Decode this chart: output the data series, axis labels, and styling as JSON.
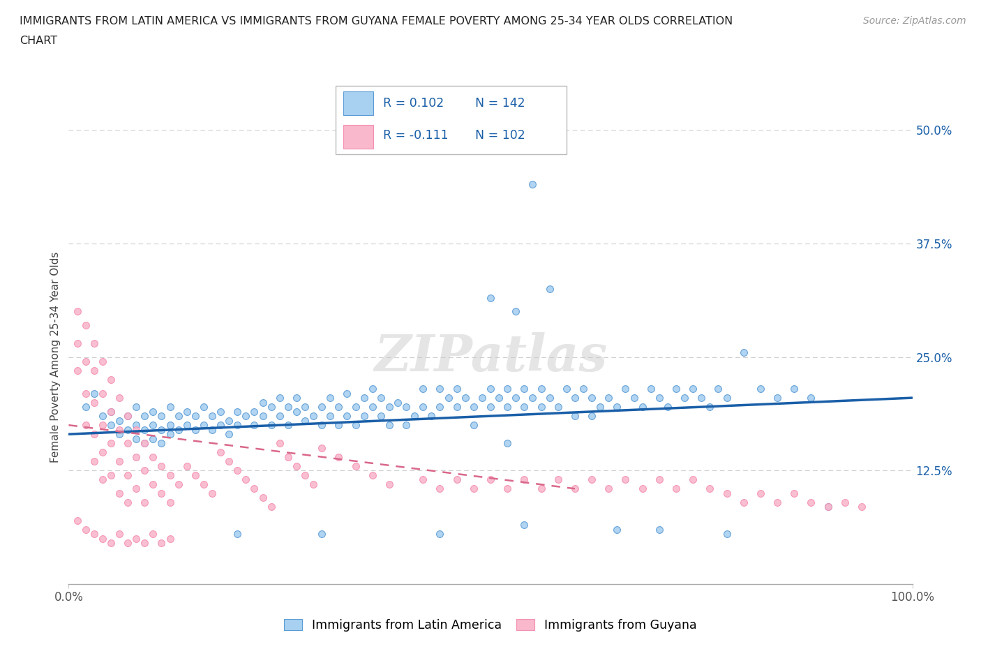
{
  "title_line1": "IMMIGRANTS FROM LATIN AMERICA VS IMMIGRANTS FROM GUYANA FEMALE POVERTY AMONG 25-34 YEAR OLDS CORRELATION",
  "title_line2": "CHART",
  "source": "Source: ZipAtlas.com",
  "ylabel": "Female Poverty Among 25-34 Year Olds",
  "xlim": [
    0,
    1.0
  ],
  "ylim": [
    0,
    0.5
  ],
  "ytick_labels": [
    "12.5%",
    "25.0%",
    "37.5%",
    "50.0%"
  ],
  "ytick_positions": [
    0.125,
    0.25,
    0.375,
    0.5
  ],
  "watermark": "ZIPatlas",
  "legend_blue_R": "0.102",
  "legend_blue_N": "142",
  "legend_pink_R": "-0.111",
  "legend_pink_N": "102",
  "legend_label_blue": "Immigrants from Latin America",
  "legend_label_pink": "Immigrants from Guyana",
  "blue_fill": "#a8d0f0",
  "pink_fill": "#f9b8cc",
  "blue_edge": "#5b9bd5",
  "pink_edge": "#f48fb1",
  "blue_line_color": "#1a5fa8",
  "pink_line_color": "#d9688a",
  "axis_label_color": "#444444",
  "ytick_color": "#1a5fa8",
  "source_color": "#999999",
  "title_color": "#222222",
  "blue_scatter": [
    [
      0.02,
      0.195
    ],
    [
      0.03,
      0.21
    ],
    [
      0.04,
      0.185
    ],
    [
      0.05,
      0.19
    ],
    [
      0.05,
      0.175
    ],
    [
      0.06,
      0.18
    ],
    [
      0.06,
      0.165
    ],
    [
      0.07,
      0.185
    ],
    [
      0.07,
      0.17
    ],
    [
      0.08,
      0.195
    ],
    [
      0.08,
      0.175
    ],
    [
      0.08,
      0.16
    ],
    [
      0.09,
      0.185
    ],
    [
      0.09,
      0.17
    ],
    [
      0.09,
      0.155
    ],
    [
      0.1,
      0.19
    ],
    [
      0.1,
      0.175
    ],
    [
      0.1,
      0.16
    ],
    [
      0.11,
      0.185
    ],
    [
      0.11,
      0.17
    ],
    [
      0.11,
      0.155
    ],
    [
      0.12,
      0.195
    ],
    [
      0.12,
      0.175
    ],
    [
      0.12,
      0.165
    ],
    [
      0.13,
      0.185
    ],
    [
      0.13,
      0.17
    ],
    [
      0.14,
      0.19
    ],
    [
      0.14,
      0.175
    ],
    [
      0.15,
      0.185
    ],
    [
      0.15,
      0.17
    ],
    [
      0.16,
      0.195
    ],
    [
      0.16,
      0.175
    ],
    [
      0.17,
      0.185
    ],
    [
      0.17,
      0.17
    ],
    [
      0.18,
      0.19
    ],
    [
      0.18,
      0.175
    ],
    [
      0.19,
      0.18
    ],
    [
      0.19,
      0.165
    ],
    [
      0.2,
      0.175
    ],
    [
      0.2,
      0.19
    ],
    [
      0.21,
      0.185
    ],
    [
      0.22,
      0.175
    ],
    [
      0.22,
      0.19
    ],
    [
      0.23,
      0.185
    ],
    [
      0.23,
      0.2
    ],
    [
      0.24,
      0.195
    ],
    [
      0.24,
      0.175
    ],
    [
      0.25,
      0.185
    ],
    [
      0.25,
      0.205
    ],
    [
      0.26,
      0.195
    ],
    [
      0.26,
      0.175
    ],
    [
      0.27,
      0.19
    ],
    [
      0.27,
      0.205
    ],
    [
      0.28,
      0.195
    ],
    [
      0.28,
      0.18
    ],
    [
      0.29,
      0.185
    ],
    [
      0.3,
      0.175
    ],
    [
      0.3,
      0.195
    ],
    [
      0.31,
      0.185
    ],
    [
      0.31,
      0.205
    ],
    [
      0.32,
      0.195
    ],
    [
      0.32,
      0.175
    ],
    [
      0.33,
      0.185
    ],
    [
      0.33,
      0.21
    ],
    [
      0.34,
      0.195
    ],
    [
      0.34,
      0.175
    ],
    [
      0.35,
      0.185
    ],
    [
      0.35,
      0.205
    ],
    [
      0.36,
      0.195
    ],
    [
      0.36,
      0.215
    ],
    [
      0.37,
      0.185
    ],
    [
      0.37,
      0.205
    ],
    [
      0.38,
      0.195
    ],
    [
      0.38,
      0.175
    ],
    [
      0.39,
      0.2
    ],
    [
      0.4,
      0.195
    ],
    [
      0.4,
      0.175
    ],
    [
      0.41,
      0.185
    ],
    [
      0.42,
      0.195
    ],
    [
      0.42,
      0.215
    ],
    [
      0.43,
      0.185
    ],
    [
      0.44,
      0.195
    ],
    [
      0.44,
      0.215
    ],
    [
      0.45,
      0.205
    ],
    [
      0.46,
      0.195
    ],
    [
      0.46,
      0.215
    ],
    [
      0.47,
      0.205
    ],
    [
      0.48,
      0.195
    ],
    [
      0.48,
      0.175
    ],
    [
      0.49,
      0.205
    ],
    [
      0.5,
      0.195
    ],
    [
      0.5,
      0.215
    ],
    [
      0.51,
      0.205
    ],
    [
      0.52,
      0.215
    ],
    [
      0.52,
      0.195
    ],
    [
      0.53,
      0.205
    ],
    [
      0.54,
      0.195
    ],
    [
      0.54,
      0.215
    ],
    [
      0.55,
      0.205
    ],
    [
      0.56,
      0.215
    ],
    [
      0.56,
      0.195
    ],
    [
      0.57,
      0.205
    ],
    [
      0.58,
      0.195
    ],
    [
      0.59,
      0.215
    ],
    [
      0.6,
      0.205
    ],
    [
      0.6,
      0.185
    ],
    [
      0.61,
      0.215
    ],
    [
      0.62,
      0.205
    ],
    [
      0.62,
      0.185
    ],
    [
      0.63,
      0.195
    ],
    [
      0.64,
      0.205
    ],
    [
      0.65,
      0.195
    ],
    [
      0.66,
      0.215
    ],
    [
      0.67,
      0.205
    ],
    [
      0.68,
      0.195
    ],
    [
      0.69,
      0.215
    ],
    [
      0.7,
      0.205
    ],
    [
      0.71,
      0.195
    ],
    [
      0.72,
      0.215
    ],
    [
      0.73,
      0.205
    ],
    [
      0.74,
      0.215
    ],
    [
      0.75,
      0.205
    ],
    [
      0.76,
      0.195
    ],
    [
      0.77,
      0.215
    ],
    [
      0.78,
      0.205
    ],
    [
      0.8,
      0.255
    ],
    [
      0.82,
      0.215
    ],
    [
      0.84,
      0.205
    ],
    [
      0.86,
      0.215
    ],
    [
      0.88,
      0.205
    ],
    [
      0.9,
      0.085
    ],
    [
      0.55,
      0.44
    ],
    [
      0.5,
      0.315
    ],
    [
      0.57,
      0.325
    ],
    [
      0.53,
      0.3
    ],
    [
      0.52,
      0.155
    ],
    [
      0.2,
      0.055
    ],
    [
      0.3,
      0.055
    ],
    [
      0.44,
      0.055
    ],
    [
      0.54,
      0.065
    ],
    [
      0.65,
      0.06
    ],
    [
      0.7,
      0.06
    ],
    [
      0.78,
      0.055
    ]
  ],
  "pink_scatter": [
    [
      0.01,
      0.3
    ],
    [
      0.01,
      0.265
    ],
    [
      0.01,
      0.235
    ],
    [
      0.02,
      0.285
    ],
    [
      0.02,
      0.245
    ],
    [
      0.02,
      0.21
    ],
    [
      0.02,
      0.175
    ],
    [
      0.03,
      0.265
    ],
    [
      0.03,
      0.235
    ],
    [
      0.03,
      0.2
    ],
    [
      0.03,
      0.165
    ],
    [
      0.03,
      0.135
    ],
    [
      0.04,
      0.245
    ],
    [
      0.04,
      0.21
    ],
    [
      0.04,
      0.175
    ],
    [
      0.04,
      0.145
    ],
    [
      0.04,
      0.115
    ],
    [
      0.05,
      0.225
    ],
    [
      0.05,
      0.19
    ],
    [
      0.05,
      0.155
    ],
    [
      0.05,
      0.12
    ],
    [
      0.06,
      0.205
    ],
    [
      0.06,
      0.17
    ],
    [
      0.06,
      0.135
    ],
    [
      0.06,
      0.1
    ],
    [
      0.07,
      0.185
    ],
    [
      0.07,
      0.155
    ],
    [
      0.07,
      0.12
    ],
    [
      0.07,
      0.09
    ],
    [
      0.08,
      0.17
    ],
    [
      0.08,
      0.14
    ],
    [
      0.08,
      0.105
    ],
    [
      0.09,
      0.155
    ],
    [
      0.09,
      0.125
    ],
    [
      0.09,
      0.09
    ],
    [
      0.1,
      0.14
    ],
    [
      0.1,
      0.11
    ],
    [
      0.11,
      0.13
    ],
    [
      0.11,
      0.1
    ],
    [
      0.12,
      0.12
    ],
    [
      0.12,
      0.09
    ],
    [
      0.13,
      0.11
    ],
    [
      0.14,
      0.13
    ],
    [
      0.15,
      0.12
    ],
    [
      0.16,
      0.11
    ],
    [
      0.17,
      0.1
    ],
    [
      0.18,
      0.145
    ],
    [
      0.19,
      0.135
    ],
    [
      0.2,
      0.125
    ],
    [
      0.21,
      0.115
    ],
    [
      0.22,
      0.105
    ],
    [
      0.23,
      0.095
    ],
    [
      0.24,
      0.085
    ],
    [
      0.25,
      0.155
    ],
    [
      0.26,
      0.14
    ],
    [
      0.27,
      0.13
    ],
    [
      0.28,
      0.12
    ],
    [
      0.29,
      0.11
    ],
    [
      0.3,
      0.15
    ],
    [
      0.32,
      0.14
    ],
    [
      0.34,
      0.13
    ],
    [
      0.36,
      0.12
    ],
    [
      0.38,
      0.11
    ],
    [
      0.42,
      0.115
    ],
    [
      0.44,
      0.105
    ],
    [
      0.46,
      0.115
    ],
    [
      0.48,
      0.105
    ],
    [
      0.5,
      0.115
    ],
    [
      0.52,
      0.105
    ],
    [
      0.54,
      0.115
    ],
    [
      0.56,
      0.105
    ],
    [
      0.58,
      0.115
    ],
    [
      0.6,
      0.105
    ],
    [
      0.62,
      0.115
    ],
    [
      0.64,
      0.105
    ],
    [
      0.66,
      0.115
    ],
    [
      0.68,
      0.105
    ],
    [
      0.7,
      0.115
    ],
    [
      0.72,
      0.105
    ],
    [
      0.74,
      0.115
    ],
    [
      0.76,
      0.105
    ],
    [
      0.78,
      0.1
    ],
    [
      0.8,
      0.09
    ],
    [
      0.82,
      0.1
    ],
    [
      0.84,
      0.09
    ],
    [
      0.86,
      0.1
    ],
    [
      0.88,
      0.09
    ],
    [
      0.9,
      0.085
    ],
    [
      0.92,
      0.09
    ],
    [
      0.94,
      0.085
    ],
    [
      0.01,
      0.07
    ],
    [
      0.02,
      0.06
    ],
    [
      0.03,
      0.055
    ],
    [
      0.04,
      0.05
    ],
    [
      0.05,
      0.045
    ],
    [
      0.06,
      0.055
    ],
    [
      0.07,
      0.045
    ],
    [
      0.08,
      0.05
    ],
    [
      0.09,
      0.045
    ],
    [
      0.1,
      0.055
    ],
    [
      0.11,
      0.045
    ],
    [
      0.12,
      0.05
    ]
  ],
  "blue_trendline_x": [
    0.0,
    1.0
  ],
  "blue_trendline_y": [
    0.165,
    0.205
  ],
  "pink_trendline_x": [
    0.0,
    0.6
  ],
  "pink_trendline_y": [
    0.175,
    0.105
  ]
}
